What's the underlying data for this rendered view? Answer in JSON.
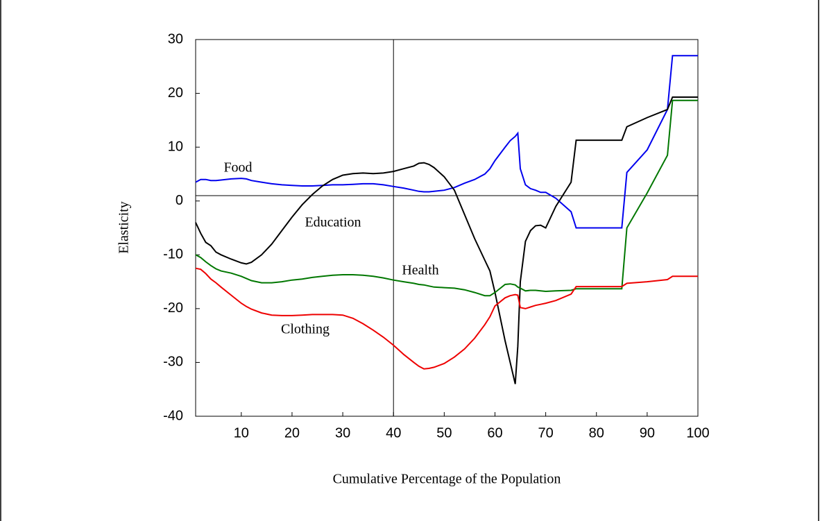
{
  "chart_data": {
    "type": "line",
    "xlabel": "Cumulative Percentage of the Population",
    "ylabel": "Elasticity",
    "xlim": [
      1,
      100
    ],
    "ylim": [
      -40,
      30
    ],
    "xticks": [
      10,
      20,
      30,
      40,
      50,
      60,
      70,
      80,
      90,
      100
    ],
    "yticks": [
      -40,
      -30,
      -20,
      -10,
      0,
      10,
      20,
      30
    ],
    "reference_lines": {
      "y": 1,
      "x": 40
    },
    "x": [
      1,
      2,
      3,
      4,
      5,
      6,
      8,
      10,
      11,
      12,
      14,
      16,
      18,
      20,
      22,
      24,
      26,
      28,
      30,
      32,
      34,
      36,
      38,
      40,
      42,
      44,
      45,
      46,
      47,
      48,
      50,
      52,
      54,
      56,
      58,
      59,
      60,
      62,
      63,
      64,
      64.5,
      65,
      66,
      67,
      68,
      69,
      70,
      72,
      75,
      76,
      80,
      85,
      86,
      90,
      94,
      95,
      100
    ],
    "series": [
      {
        "name": "Food",
        "color": "#0000ee",
        "values": [
          3.5,
          4,
          4,
          3.8,
          3.8,
          3.9,
          4.1,
          4.2,
          4.1,
          3.8,
          3.5,
          3.2,
          3.0,
          2.9,
          2.8,
          2.8,
          2.9,
          3.0,
          3.0,
          3.1,
          3.2,
          3.2,
          3.0,
          2.7,
          2.4,
          2.0,
          1.8,
          1.7,
          1.7,
          1.8,
          2.0,
          2.5,
          3.3,
          4.0,
          5.0,
          6.0,
          7.5,
          10,
          11.2,
          12,
          12.6,
          6,
          3,
          2.3,
          2,
          1.6,
          1.6,
          0.5,
          -2,
          -5,
          -5,
          -5,
          5.3,
          9.5,
          17,
          27,
          27
        ]
      },
      {
        "name": "Education",
        "color": "#000000",
        "values": [
          -4,
          -6,
          -7.7,
          -8.3,
          -9.5,
          -10,
          -10.8,
          -11.5,
          -11.7,
          -11.4,
          -10,
          -8,
          -5.5,
          -3,
          -0.7,
          1.2,
          2.8,
          4,
          4.8,
          5.1,
          5.2,
          5.1,
          5.2,
          5.5,
          6,
          6.5,
          7,
          7.1,
          6.8,
          6.2,
          4.5,
          2,
          -2.5,
          -7,
          -11,
          -13,
          -17,
          -26,
          -30,
          -34,
          -27,
          -15,
          -7.5,
          -5.5,
          -4.6,
          -4.5,
          -5,
          -1,
          3.5,
          11.3,
          11.3,
          11.3,
          13.8,
          15.5,
          17,
          19.3,
          19.3
        ]
      },
      {
        "name": "Health",
        "color": "#007700",
        "values": [
          -10,
          -10.5,
          -11.3,
          -12,
          -12.6,
          -13,
          -13.4,
          -14,
          -14.4,
          -14.8,
          -15.2,
          -15.2,
          -15,
          -14.7,
          -14.5,
          -14.2,
          -14,
          -13.8,
          -13.7,
          -13.7,
          -13.8,
          -14,
          -14.3,
          -14.7,
          -15,
          -15.3,
          -15.5,
          -15.6,
          -15.8,
          -16,
          -16.1,
          -16.2,
          -16.5,
          -17,
          -17.6,
          -17.6,
          -17,
          -15.5,
          -15.4,
          -15.6,
          -16,
          -16.2,
          -16.7,
          -16.6,
          -16.6,
          -16.7,
          -16.8,
          -16.7,
          -16.6,
          -16.3,
          -16.3,
          -16.3,
          -5,
          1.5,
          8.5,
          18.7,
          18.7
        ]
      },
      {
        "name": "Clothing",
        "color": "#ee0000",
        "values": [
          -12.5,
          -12.7,
          -13.5,
          -14.5,
          -15.2,
          -16,
          -17.5,
          -19,
          -19.6,
          -20.1,
          -20.8,
          -21.2,
          -21.3,
          -21.3,
          -21.2,
          -21.1,
          -21.1,
          -21.1,
          -21.2,
          -21.8,
          -22.8,
          -24,
          -25.3,
          -26.8,
          -28.5,
          -30,
          -30.7,
          -31.2,
          -31.1,
          -30.9,
          -30.2,
          -29,
          -27.5,
          -25.5,
          -23,
          -21.5,
          -19.5,
          -18,
          -17.6,
          -17.4,
          -17.5,
          -19.8,
          -20,
          -19.7,
          -19.4,
          -19.2,
          -19,
          -18.5,
          -17.3,
          -15.9,
          -15.9,
          -15.9,
          -15.3,
          -15,
          -14.6,
          -14,
          -14
        ]
      }
    ]
  }
}
